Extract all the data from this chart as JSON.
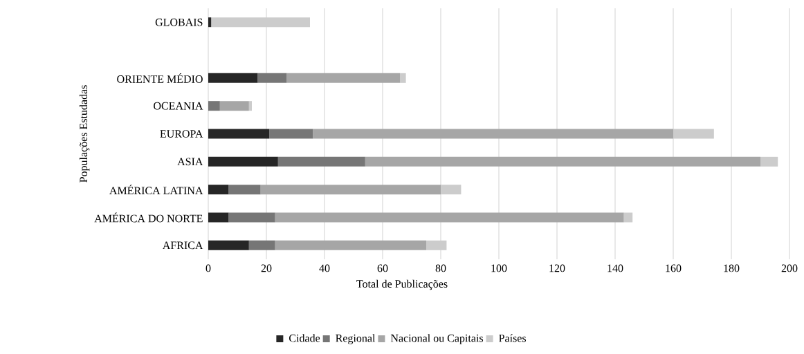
{
  "chart_data": {
    "type": "bar",
    "orientation": "horizontal",
    "stacked": true,
    "xlabel": "Total de Publicações",
    "ylabel": "Populações Estudadas",
    "categories": [
      "GLOBAIS",
      null,
      "ORIENTE MÉDIO",
      "OCEANIA",
      "EUROPA",
      "ASIA",
      "AMÉRICA LATINA",
      "AMÉRICA DO NORTE",
      "AFRICA"
    ],
    "series": [
      {
        "name": "Cidade",
        "color": "#262626",
        "values": [
          1,
          null,
          17,
          0,
          21,
          24,
          7,
          7,
          14
        ]
      },
      {
        "name": "Regional",
        "color": "#767676",
        "values": [
          0,
          null,
          10,
          4,
          15,
          30,
          11,
          16,
          9
        ]
      },
      {
        "name": "Nacional ou Capitais",
        "color": "#a6a6a6",
        "values": [
          0,
          null,
          39,
          10,
          124,
          136,
          62,
          120,
          52
        ]
      },
      {
        "name": "Países",
        "color": "#cccccc",
        "values": [
          34,
          null,
          2,
          1,
          14,
          6,
          7,
          3,
          7
        ]
      }
    ],
    "xlim": [
      0,
      200
    ],
    "xticks": [
      0,
      20,
      40,
      60,
      80,
      100,
      120,
      140,
      160,
      180,
      200
    ],
    "grid": "x",
    "legend": "bottom"
  }
}
